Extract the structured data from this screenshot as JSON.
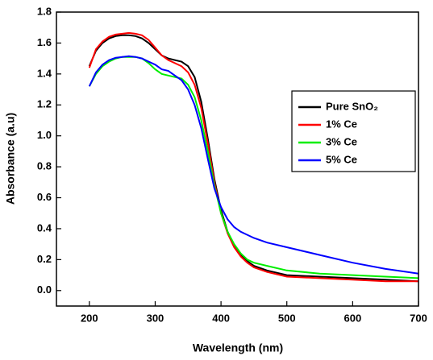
{
  "chart_data": {
    "type": "line",
    "xlabel": "Wavelength (nm)",
    "ylabel": "Absorbance (a.u)",
    "x": [
      200,
      210,
      220,
      230,
      240,
      250,
      260,
      270,
      280,
      290,
      300,
      310,
      320,
      330,
      340,
      350,
      360,
      370,
      380,
      390,
      400,
      410,
      420,
      430,
      440,
      450,
      470,
      500,
      550,
      600,
      650,
      700
    ],
    "series": [
      {
        "name": "Pure SnO₂",
        "color": "#000000",
        "values": [
          1.45,
          1.55,
          1.6,
          1.63,
          1.645,
          1.65,
          1.65,
          1.645,
          1.63,
          1.6,
          1.56,
          1.52,
          1.5,
          1.49,
          1.48,
          1.45,
          1.38,
          1.22,
          0.98,
          0.72,
          0.52,
          0.38,
          0.29,
          0.23,
          0.19,
          0.16,
          0.13,
          0.1,
          0.09,
          0.08,
          0.07,
          0.06
        ]
      },
      {
        "name": "1% Ce",
        "color": "#ff0000",
        "values": [
          1.44,
          1.56,
          1.61,
          1.64,
          1.655,
          1.66,
          1.665,
          1.66,
          1.65,
          1.62,
          1.57,
          1.52,
          1.49,
          1.47,
          1.45,
          1.41,
          1.33,
          1.18,
          0.95,
          0.7,
          0.5,
          0.37,
          0.28,
          0.22,
          0.18,
          0.15,
          0.12,
          0.09,
          0.08,
          0.07,
          0.06,
          0.06
        ]
      },
      {
        "name": "3% Ce",
        "color": "#00ee00",
        "values": [
          1.32,
          1.4,
          1.45,
          1.48,
          1.5,
          1.51,
          1.51,
          1.51,
          1.5,
          1.47,
          1.43,
          1.4,
          1.39,
          1.38,
          1.37,
          1.33,
          1.25,
          1.1,
          0.9,
          0.68,
          0.5,
          0.38,
          0.3,
          0.24,
          0.2,
          0.18,
          0.16,
          0.13,
          0.11,
          0.1,
          0.09,
          0.08
        ]
      },
      {
        "name": "5% Ce",
        "color": "#0000ff",
        "values": [
          1.32,
          1.41,
          1.46,
          1.49,
          1.505,
          1.51,
          1.515,
          1.51,
          1.5,
          1.48,
          1.46,
          1.43,
          1.42,
          1.39,
          1.36,
          1.3,
          1.2,
          1.05,
          0.85,
          0.66,
          0.54,
          0.46,
          0.41,
          0.38,
          0.36,
          0.34,
          0.31,
          0.28,
          0.23,
          0.18,
          0.14,
          0.11
        ]
      }
    ],
    "xlim": [
      150,
      700
    ],
    "xticks": [
      200,
      300,
      400,
      500,
      600,
      700
    ],
    "ylim": [
      -0.1,
      1.8
    ],
    "yticks": [
      {
        "value": 0,
        "label": "0.0"
      },
      0.2,
      0.4,
      0.6,
      0.8,
      {
        "value": 1,
        "label": "1.0"
      },
      1.2,
      1.4,
      1.6,
      1.8
    ],
    "legend": "right"
  }
}
